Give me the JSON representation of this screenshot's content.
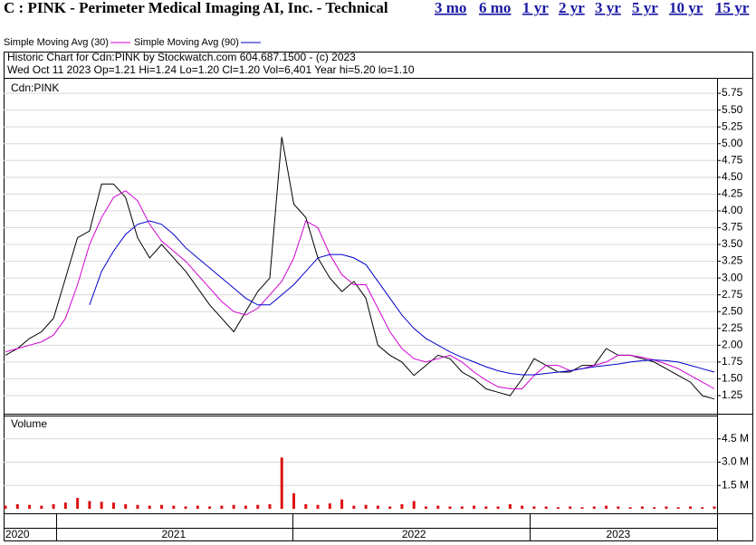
{
  "page": {
    "heading": "C : PINK - Perimeter Medical Imaging AI, Inc. - Technical",
    "links": [
      "3 mo",
      "6 mo",
      "1 yr",
      "2 yr",
      "3 yr",
      "5 yr",
      "10 yr",
      "15 yr"
    ]
  },
  "chart_data": [
    {
      "type": "line",
      "header_lines": [
        "Historic Chart for Cdn:PINK by Stockwatch.com 604.687.1500 - (c) 2023",
        "Wed Oct 11 2023  Op=1.21  Hi=1.24  Lo=1.20  Cl=1.20  Vol=6,401  Year hi=5.20  lo=1.10"
      ],
      "label": "Cdn:PINK",
      "categories": [
        null,
        "2020",
        null,
        null,
        null,
        null,
        null,
        null,
        null,
        null,
        null,
        null,
        null,
        null,
        "2021",
        null,
        null,
        null,
        null,
        null,
        null,
        null,
        null,
        null,
        null,
        null,
        null,
        null,
        null,
        null,
        null,
        null,
        null,
        null,
        "2022",
        null,
        null,
        null,
        null,
        null,
        null,
        null,
        null,
        null,
        null,
        null,
        null,
        null,
        null,
        null,
        null,
        "2023",
        null,
        null,
        null,
        null,
        null,
        null,
        null,
        null
      ],
      "series": [
        {
          "color": "#000000",
          "values": [
            1.85,
            1.95,
            2.1,
            2.2,
            2.4,
            3.0,
            3.6,
            3.7,
            4.4,
            4.4,
            4.2,
            3.6,
            3.3,
            3.5,
            3.3,
            3.1,
            2.85,
            2.6,
            2.4,
            2.2,
            2.5,
            2.8,
            3.0,
            5.1,
            4.1,
            3.9,
            3.3,
            3.0,
            2.8,
            2.95,
            2.7,
            2.0,
            1.85,
            1.75,
            1.55,
            1.7,
            1.85,
            1.8,
            1.6,
            1.5,
            1.35,
            1.3,
            1.25,
            1.5,
            1.8,
            1.7,
            1.6,
            1.6,
            1.7,
            1.7,
            1.95,
            1.85,
            1.85,
            1.8,
            1.75,
            1.65,
            1.55,
            1.45,
            1.25,
            1.2
          ]
        },
        {
          "name": "Simple Moving Avg (30)",
          "color": "#d000d0",
          "values": [
            1.9,
            1.95,
            2.0,
            2.05,
            2.15,
            2.4,
            2.9,
            3.5,
            3.9,
            4.2,
            4.3,
            4.15,
            3.8,
            3.55,
            3.4,
            3.25,
            3.05,
            2.85,
            2.65,
            2.5,
            2.45,
            2.55,
            2.75,
            2.95,
            3.3,
            3.85,
            3.75,
            3.35,
            3.05,
            2.9,
            2.9,
            2.55,
            2.2,
            1.95,
            1.8,
            1.75,
            1.8,
            1.85,
            1.75,
            1.6,
            1.48,
            1.38,
            1.35,
            1.35,
            1.55,
            1.7,
            1.7,
            1.62,
            1.65,
            1.7,
            1.75,
            1.85,
            1.85,
            1.82,
            1.78,
            1.72,
            1.65,
            1.55,
            1.45,
            1.35
          ]
        },
        {
          "name": "Simple Moving Avg (90)",
          "color": "#0000cc",
          "values": [
            null,
            null,
            null,
            null,
            null,
            null,
            null,
            2.6,
            3.1,
            3.4,
            3.65,
            3.8,
            3.85,
            3.8,
            3.65,
            3.45,
            3.3,
            3.15,
            3.0,
            2.85,
            2.7,
            2.6,
            2.6,
            2.75,
            2.9,
            3.1,
            3.3,
            3.35,
            3.35,
            3.3,
            3.2,
            2.95,
            2.7,
            2.45,
            2.25,
            2.1,
            2.0,
            1.9,
            1.82,
            1.75,
            1.68,
            1.62,
            1.58,
            1.56,
            1.56,
            1.58,
            1.6,
            1.62,
            1.65,
            1.68,
            1.7,
            1.72,
            1.75,
            1.77,
            1.78,
            1.77,
            1.75,
            1.7,
            1.65,
            1.6
          ]
        }
      ],
      "ylim": [
        0.98,
        5.98
      ],
      "yticks": [
        1.25,
        {
          "value": 1.5,
          "label": "1.50"
        },
        1.75,
        {
          "value": 2,
          "label": "2.00"
        },
        2.25,
        {
          "value": 2.5,
          "label": "2.50"
        },
        2.75,
        {
          "value": 3,
          "label": "3.00"
        },
        3.25,
        {
          "value": 3.5,
          "label": "3.50"
        },
        3.75,
        {
          "value": 4,
          "label": "4.00"
        },
        4.25,
        {
          "value": 4.5,
          "label": "4.50"
        },
        4.75,
        {
          "value": 5,
          "label": "5.00"
        },
        5.25,
        {
          "value": 5.5,
          "label": "5.50"
        },
        5.75
      ],
      "grid": true
    },
    {
      "type": "bar",
      "title": "Volume",
      "color": "#dd1111",
      "values": [
        200000,
        300000,
        250000,
        200000,
        300000,
        400000,
        700000,
        500000,
        450000,
        400000,
        300000,
        250000,
        200000,
        250000,
        200000,
        150000,
        200000,
        150000,
        200000,
        250000,
        200000,
        250000,
        300000,
        3300000,
        1000000,
        300000,
        250000,
        350000,
        600000,
        200000,
        250000,
        200000,
        150000,
        300000,
        500000,
        150000,
        200000,
        150000,
        150000,
        200000,
        150000,
        150000,
        300000,
        200000,
        150000,
        150000,
        100000,
        150000,
        100000,
        150000,
        200000,
        150000,
        100000,
        150000,
        100000,
        150000,
        100000,
        150000,
        100000,
        150000
      ],
      "ylim": [
        0,
        6000000
      ],
      "yticks": [
        {
          "value": 1500000,
          "label": "1.5 M"
        },
        {
          "value": 3000000,
          "label": "3.0 M"
        },
        {
          "value": 4500000,
          "label": "4.5 M"
        }
      ],
      "grid": true
    }
  ]
}
